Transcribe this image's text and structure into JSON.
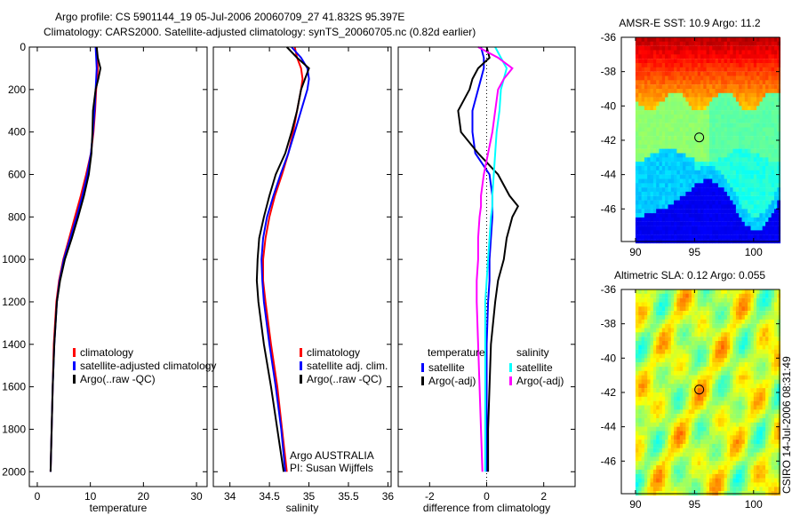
{
  "title": {
    "line1": "Argo profile: CS 5901144_19 05-Jul-2006 20060709_27 41.832S 95.397E",
    "line2": "Climatology: CARS2000. Satellite-adjusted climatology: synTS_20060705.nc (0.82d earlier)"
  },
  "side_label": "CSIRO 14-Jul-2006 08:31:49",
  "colors": {
    "red": "#ff0000",
    "blue": "#0000ff",
    "black": "#000000",
    "cyan": "#00ffff",
    "magenta": "#ff00ff"
  },
  "chart_data": [
    {
      "type": "line",
      "xlabel": "temperature",
      "ylabel": "",
      "xlim": [
        -1.5,
        32
      ],
      "ylim": [
        2070,
        0
      ],
      "xticks": [
        0,
        10,
        20,
        30
      ],
      "yticks": [
        0,
        200,
        400,
        600,
        800,
        1000,
        1200,
        1400,
        1600,
        1800,
        2000
      ],
      "legend": [
        "climatology",
        "satellite-adjusted climatology",
        "Argo(..raw -QC)"
      ],
      "depth": [
        0,
        50,
        100,
        150,
        200,
        300,
        400,
        500,
        600,
        700,
        800,
        900,
        1000,
        1100,
        1200,
        1400,
        1600,
        1800,
        2000
      ],
      "series": [
        {
          "name": "climatology",
          "color": "red",
          "values": [
            11.2,
            11.3,
            11.4,
            11.3,
            11.1,
            10.9,
            10.6,
            10.1,
            9.2,
            8.2,
            7.1,
            6.0,
            4.9,
            4.1,
            3.6,
            3.1,
            2.9,
            2.7,
            2.5
          ]
        },
        {
          "name": "satellite-adjusted climatology",
          "color": "blue",
          "values": [
            11.0,
            11.1,
            11.2,
            11.1,
            11.0,
            10.8,
            10.5,
            10.1,
            9.4,
            8.5,
            7.4,
            6.2,
            5.0,
            4.2,
            3.7,
            3.2,
            2.9,
            2.7,
            2.5
          ]
        },
        {
          "name": "Argo(..raw -QC)",
          "color": "black",
          "values": [
            11.2,
            11.4,
            11.9,
            11.5,
            11.0,
            10.5,
            10.4,
            10.2,
            9.7,
            8.8,
            7.7,
            6.5,
            5.2,
            4.3,
            3.7,
            3.2,
            2.9,
            2.7,
            2.5
          ]
        }
      ]
    },
    {
      "type": "line",
      "xlabel": "salinity",
      "xlim": [
        33.79,
        36.04
      ],
      "ylim": [
        2070,
        0
      ],
      "xticks": [
        34,
        34.5,
        35,
        35.5,
        36
      ],
      "legend": [
        "climatology",
        "satellite adj. clim.",
        "Argo(..raw -QC)"
      ],
      "annotation": [
        "Argo AUSTRALIA",
        "PI: Susan Wijffels"
      ],
      "depth": [
        0,
        50,
        100,
        150,
        200,
        300,
        400,
        500,
        600,
        700,
        800,
        900,
        1000,
        1100,
        1200,
        1400,
        1600,
        1800,
        2000
      ],
      "series": [
        {
          "name": "climatology",
          "color": "red",
          "values": [
            34.82,
            34.85,
            34.9,
            34.92,
            34.9,
            34.85,
            34.8,
            34.74,
            34.66,
            34.57,
            34.5,
            34.45,
            34.42,
            34.42,
            34.45,
            34.52,
            34.6,
            34.66,
            34.72
          ]
        },
        {
          "name": "satellite adj. clim.",
          "color": "blue",
          "values": [
            34.78,
            34.9,
            34.98,
            35.0,
            34.98,
            34.9,
            34.82,
            34.74,
            34.64,
            34.55,
            34.47,
            34.42,
            34.4,
            34.41,
            34.43,
            34.5,
            34.58,
            34.65,
            34.7
          ]
        },
        {
          "name": "Argo(..raw -QC)",
          "color": "black",
          "values": [
            34.72,
            34.85,
            35.0,
            34.95,
            34.9,
            34.85,
            34.78,
            34.7,
            34.58,
            34.5,
            34.43,
            34.37,
            34.35,
            34.34,
            34.36,
            34.43,
            34.52,
            34.6,
            34.68
          ]
        }
      ]
    },
    {
      "type": "line",
      "xlabel": "difference from climatology",
      "xlim": [
        -3.1,
        3.1
      ],
      "ylim": [
        2070,
        0
      ],
      "xticks": [
        -2,
        0,
        2
      ],
      "legend": {
        "temperature_title": "temperature",
        "salinity_title": "salinity",
        "items": [
          "satellite",
          "Argo(-adj)",
          "satellite",
          "Argo(-adj)"
        ]
      },
      "depth": [
        0,
        50,
        100,
        150,
        200,
        300,
        400,
        500,
        600,
        700,
        750,
        800,
        900,
        1000,
        1100,
        1200,
        1400,
        1600,
        1800,
        2000
      ],
      "series": [
        {
          "name": "temperature satellite",
          "color": "blue",
          "values": [
            -0.2,
            -0.1,
            -0.1,
            -0.2,
            -0.3,
            -0.5,
            -0.5,
            -0.4,
            0.1,
            0.2,
            0.2,
            0.2,
            0.15,
            0.1,
            0.1,
            0.05,
            0.0,
            0.0,
            0.0,
            0.0
          ]
        },
        {
          "name": "temperature Argo(-adj)",
          "color": "black",
          "values": [
            0.0,
            0.1,
            -0.3,
            -0.5,
            -0.6,
            -1.0,
            -0.9,
            -0.3,
            0.4,
            0.8,
            1.1,
            0.9,
            0.7,
            0.6,
            0.4,
            0.3,
            0.15,
            0.1,
            0.05,
            0.05
          ]
        },
        {
          "name": "salinity satellite",
          "color": "cyan",
          "values": [
            0.3,
            0.5,
            0.7,
            0.6,
            0.5,
            0.45,
            0.35,
            0.3,
            0.25,
            0.2,
            0.2,
            0.15,
            0.1,
            0.05,
            0.0,
            -0.05,
            -0.05,
            -0.05,
            -0.05,
            -0.05
          ]
        },
        {
          "name": "salinity Argo(-adj)",
          "color": "magenta",
          "values": [
            -0.3,
            0.4,
            0.9,
            0.6,
            0.4,
            0.3,
            0.2,
            0.05,
            -0.1,
            -0.2,
            -0.2,
            -0.25,
            -0.3,
            -0.3,
            -0.35,
            -0.35,
            -0.3,
            -0.25,
            -0.2,
            -0.15
          ]
        }
      ]
    },
    {
      "type": "heatmap",
      "title": "AMSR-E SST: 10.9 Argo: 11.2",
      "xlim": [
        88.8,
        102.2
      ],
      "ylim": [
        -36,
        -47.9
      ],
      "xticks": [
        90,
        95,
        100
      ],
      "yticks": [
        -36,
        -38,
        -40,
        -42,
        -44,
        -46
      ],
      "marker": {
        "lon": 95.397,
        "lat": -41.832
      }
    },
    {
      "type": "heatmap",
      "title": "Altimetric SLA: 0.12 Argo: 0.055",
      "xlim": [
        88.8,
        102.2
      ],
      "ylim": [
        -36,
        -47.9
      ],
      "xticks": [
        90,
        95,
        100
      ],
      "yticks": [
        -36,
        -38,
        -40,
        -42,
        -44,
        -46
      ],
      "marker": {
        "lon": 95.397,
        "lat": -41.832
      }
    }
  ]
}
